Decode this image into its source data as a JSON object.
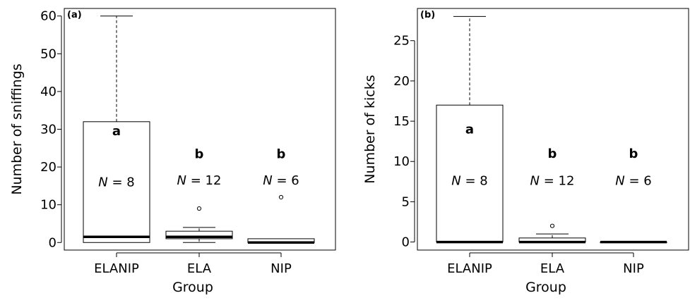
{
  "chart_data": [
    {
      "type": "boxplot",
      "panel_tag": "(a)",
      "xlabel": "Group",
      "ylabel": "Number of sniffings",
      "categories": [
        "ELANIP",
        "ELA",
        "NIP"
      ],
      "ylim": [
        -2,
        62
      ],
      "yticks": [
        0,
        10,
        20,
        30,
        40,
        50,
        60
      ],
      "boxes": [
        {
          "min": 0,
          "q1": 0,
          "median": 1.5,
          "q3": 32,
          "max": 60,
          "outliers": []
        },
        {
          "min": 0,
          "q1": 1,
          "median": 1.5,
          "q3": 3,
          "max": 4,
          "outliers": [
            9
          ]
        },
        {
          "min": 0,
          "q1": 0,
          "median": 0,
          "q3": 1,
          "max": 1,
          "outliers": [
            12
          ]
        }
      ],
      "letters": [
        "a",
        "b",
        "b"
      ],
      "letter_y": [
        29.5,
        23.5,
        23.5
      ],
      "n_labels": [
        {
          "label": "N",
          "value": "= 8",
          "y": 16
        },
        {
          "label": "N",
          "value": "= 12",
          "y": 16.5
        },
        {
          "label": "N",
          "value": "= 6",
          "y": 16.5
        }
      ]
    },
    {
      "type": "boxplot",
      "panel_tag": "(b)",
      "xlabel": "Group",
      "ylabel": "Number of kicks",
      "categories": [
        "ELANIP",
        "ELA",
        "NIP"
      ],
      "ylim": [
        -1,
        29
      ],
      "yticks": [
        0,
        5,
        10,
        15,
        20,
        25
      ],
      "boxes": [
        {
          "min": 0,
          "q1": 0,
          "median": 0,
          "q3": 17,
          "max": 28,
          "outliers": []
        },
        {
          "min": 0,
          "q1": 0,
          "median": 0,
          "q3": 0.5,
          "max": 1,
          "outliers": [
            2
          ]
        },
        {
          "min": 0,
          "q1": 0,
          "median": 0,
          "q3": 0,
          "max": 0,
          "outliers": []
        }
      ],
      "letters": [
        "a",
        "b",
        "b"
      ],
      "letter_y": [
        14,
        11,
        11
      ],
      "n_labels": [
        {
          "label": "N",
          "value": "= 8",
          "y": 7.6
        },
        {
          "label": "N",
          "value": "= 12",
          "y": 7.6
        },
        {
          "label": "N",
          "value": "= 6",
          "y": 7.6
        }
      ]
    }
  ]
}
